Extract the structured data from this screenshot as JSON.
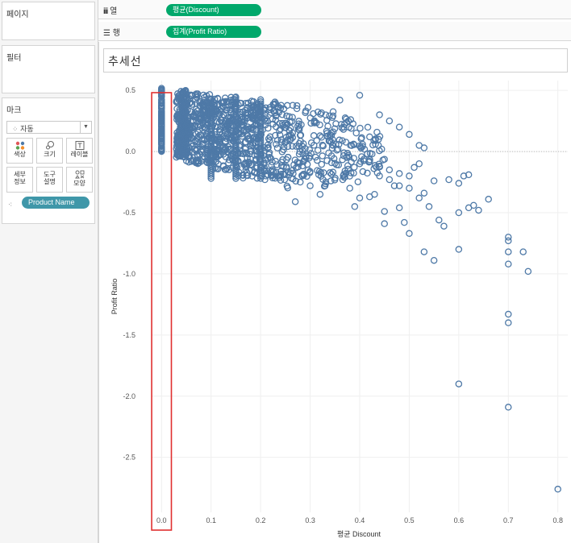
{
  "left_panel": {
    "pages_title": "페이지",
    "filters_title": "필터",
    "marks_title": "마크",
    "mark_type": "자동",
    "mark_buttons": [
      {
        "label": "색상",
        "icon": "color-dots-icon"
      },
      {
        "label": "크기",
        "icon": "size-icon"
      },
      {
        "label": "레이블",
        "icon": "label-icon"
      },
      {
        "label": "세부\n정보",
        "icon": "detail-icon"
      },
      {
        "label": "도구\n설명",
        "icon": "tooltip-icon"
      },
      {
        "label": "모양",
        "icon": "shape-icon"
      }
    ],
    "detail_pill": "Product Name"
  },
  "shelves": {
    "columns_label": "열",
    "columns_pill": "평균(Discount)",
    "rows_label": "행",
    "rows_pill": "집계(Profit Ratio)"
  },
  "viz": {
    "title": "추세선"
  },
  "chart_data": {
    "type": "scatter",
    "title": "추세선",
    "xlabel": "평균 Discount",
    "ylabel": "Profit Ratio",
    "xlim": [
      -0.02,
      0.82
    ],
    "ylim": [
      -2.95,
      0.58
    ],
    "x_ticks": [
      "0.0",
      "0.1",
      "0.2",
      "0.3",
      "0.4",
      "0.5",
      "0.6",
      "0.7",
      "0.8"
    ],
    "y_ticks": [
      "0.5",
      "0.0",
      "-0.5",
      "-1.0",
      "-1.5",
      "-2.0",
      "-2.5"
    ],
    "marker": "open-circle",
    "color": "#4e79a7",
    "highlight": {
      "x_range": [
        -0.015,
        0.015
      ],
      "y_range": [
        -3.0,
        0.55
      ],
      "color": "#e03030"
    },
    "points": [
      [
        0.61,
        -0.2
      ],
      [
        0.62,
        -0.19
      ],
      [
        0.6,
        -0.26
      ],
      [
        0.63,
        -0.44
      ],
      [
        0.62,
        -0.46
      ],
      [
        0.64,
        -0.48
      ],
      [
        0.66,
        -0.39
      ],
      [
        0.6,
        -0.5
      ],
      [
        0.5,
        -0.3
      ],
      [
        0.52,
        -0.38
      ],
      [
        0.53,
        -0.34
      ],
      [
        0.55,
        -0.24
      ],
      [
        0.58,
        -0.23
      ],
      [
        0.54,
        -0.45
      ],
      [
        0.56,
        -0.56
      ],
      [
        0.57,
        -0.61
      ],
      [
        0.48,
        -0.46
      ],
      [
        0.49,
        -0.58
      ],
      [
        0.5,
        -0.67
      ],
      [
        0.53,
        -0.82
      ],
      [
        0.55,
        -0.89
      ],
      [
        0.45,
        -0.49
      ],
      [
        0.45,
        -0.59
      ],
      [
        0.4,
        -0.38
      ],
      [
        0.42,
        -0.37
      ],
      [
        0.43,
        -0.35
      ],
      [
        0.38,
        -0.3
      ],
      [
        0.39,
        -0.45
      ],
      [
        0.44,
        -0.2
      ],
      [
        0.46,
        -0.15
      ],
      [
        0.48,
        -0.18
      ],
      [
        0.6,
        -0.8
      ],
      [
        0.7,
        -0.7
      ],
      [
        0.7,
        -0.73
      ],
      [
        0.7,
        -0.82
      ],
      [
        0.73,
        -0.82
      ],
      [
        0.74,
        -0.98
      ],
      [
        0.7,
        -0.92
      ],
      [
        0.7,
        -1.33
      ],
      [
        0.7,
        -1.4
      ],
      [
        0.6,
        -1.9
      ],
      [
        0.7,
        -2.09
      ],
      [
        0.8,
        -2.76
      ],
      [
        0.36,
        0.42
      ],
      [
        0.4,
        0.46
      ],
      [
        0.44,
        0.3
      ],
      [
        0.46,
        0.25
      ],
      [
        0.48,
        0.2
      ],
      [
        0.5,
        0.14
      ],
      [
        0.52,
        0.05
      ],
      [
        0.53,
        0.03
      ],
      [
        0.52,
        -0.1
      ],
      [
        0.51,
        -0.13
      ],
      [
        0.5,
        -0.2
      ],
      [
        0.48,
        -0.28
      ],
      [
        0.47,
        -0.28
      ],
      [
        0.46,
        -0.23
      ],
      [
        0.44,
        -0.12
      ],
      [
        0.42,
        -0.08
      ],
      [
        0.4,
        -0.1
      ],
      [
        0.33,
        -0.28
      ],
      [
        0.32,
        -0.35
      ],
      [
        0.3,
        -0.28
      ],
      [
        0.28,
        -0.25
      ],
      [
        0.27,
        -0.41
      ]
    ]
  }
}
